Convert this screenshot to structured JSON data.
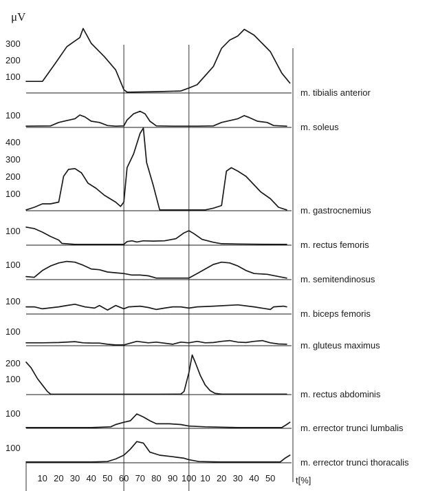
{
  "unit_label": "μV",
  "x_axis_label": "t[%]",
  "chart_data": {
    "type": "line",
    "title": "",
    "ylabel": "μV",
    "xlabel": "t[%]",
    "x_tick_labels": [
      "10",
      "20",
      "30",
      "40",
      "50",
      "60",
      "70",
      "80",
      "90",
      "100",
      "10",
      "20",
      "30",
      "40",
      "50"
    ],
    "x_segments": [
      {
        "start": 0,
        "end": 60
      },
      {
        "start": 60,
        "end": 100
      },
      {
        "start": 100,
        "end": 160
      }
    ],
    "x_range": [
      0,
      163
    ],
    "grid": false,
    "panels": [
      {
        "name": "m. tibialis anterior",
        "y_ticks": [
          "100",
          "200",
          "300"
        ],
        "tick_values": [
          100,
          200,
          300
        ],
        "points": [
          [
            0,
            70
          ],
          [
            10,
            70
          ],
          [
            18,
            180
          ],
          [
            25,
            280
          ],
          [
            30,
            315
          ],
          [
            33,
            335
          ],
          [
            35,
            390
          ],
          [
            40,
            300
          ],
          [
            48,
            220
          ],
          [
            55,
            140
          ],
          [
            60,
            20
          ],
          [
            62,
            5
          ],
          [
            80,
            8
          ],
          [
            95,
            12
          ],
          [
            100,
            30
          ],
          [
            105,
            50
          ],
          [
            115,
            160
          ],
          [
            120,
            270
          ],
          [
            125,
            320
          ],
          [
            130,
            345
          ],
          [
            134,
            385
          ],
          [
            140,
            350
          ],
          [
            150,
            250
          ],
          [
            157,
            120
          ],
          [
            162,
            60
          ]
        ]
      },
      {
        "name": "m. soleus",
        "y_ticks": [
          "100"
        ],
        "tick_values": [
          100
        ],
        "points": [
          [
            0,
            10
          ],
          [
            15,
            12
          ],
          [
            20,
            40
          ],
          [
            25,
            55
          ],
          [
            30,
            70
          ],
          [
            33,
            100
          ],
          [
            36,
            85
          ],
          [
            40,
            50
          ],
          [
            45,
            40
          ],
          [
            50,
            15
          ],
          [
            55,
            10
          ],
          [
            60,
            12
          ],
          [
            62,
            60
          ],
          [
            66,
            110
          ],
          [
            70,
            130
          ],
          [
            73,
            110
          ],
          [
            76,
            50
          ],
          [
            80,
            12
          ],
          [
            90,
            10
          ],
          [
            105,
            10
          ],
          [
            115,
            12
          ],
          [
            120,
            40
          ],
          [
            130,
            70
          ],
          [
            134,
            95
          ],
          [
            137,
            80
          ],
          [
            142,
            50
          ],
          [
            148,
            40
          ],
          [
            152,
            15
          ],
          [
            160,
            10
          ]
        ]
      },
      {
        "name": "m. gastrocnemius",
        "y_ticks": [
          "100",
          "200",
          "300",
          "400"
        ],
        "tick_values": [
          100,
          200,
          300,
          400
        ],
        "points": [
          [
            0,
            5
          ],
          [
            5,
            20
          ],
          [
            10,
            40
          ],
          [
            15,
            40
          ],
          [
            20,
            50
          ],
          [
            23,
            200
          ],
          [
            26,
            240
          ],
          [
            30,
            245
          ],
          [
            34,
            220
          ],
          [
            38,
            160
          ],
          [
            43,
            130
          ],
          [
            48,
            90
          ],
          [
            55,
            50
          ],
          [
            58,
            25
          ],
          [
            60,
            50
          ],
          [
            62,
            250
          ],
          [
            66,
            330
          ],
          [
            70,
            450
          ],
          [
            72,
            480
          ],
          [
            74,
            280
          ],
          [
            78,
            150
          ],
          [
            82,
            5
          ],
          [
            100,
            5
          ],
          [
            110,
            5
          ],
          [
            115,
            15
          ],
          [
            120,
            30
          ],
          [
            123,
            230
          ],
          [
            126,
            250
          ],
          [
            130,
            230
          ],
          [
            135,
            200
          ],
          [
            139,
            160
          ],
          [
            144,
            110
          ],
          [
            150,
            70
          ],
          [
            155,
            20
          ],
          [
            160,
            5
          ]
        ]
      },
      {
        "name": "m. rectus femoris",
        "y_ticks": [
          "100"
        ],
        "tick_values": [
          100
        ],
        "points": [
          [
            0,
            125
          ],
          [
            5,
            115
          ],
          [
            10,
            90
          ],
          [
            15,
            60
          ],
          [
            20,
            35
          ],
          [
            22,
            12
          ],
          [
            30,
            5
          ],
          [
            40,
            5
          ],
          [
            50,
            5
          ],
          [
            60,
            5
          ],
          [
            62,
            25
          ],
          [
            65,
            30
          ],
          [
            68,
            22
          ],
          [
            72,
            30
          ],
          [
            78,
            28
          ],
          [
            85,
            30
          ],
          [
            92,
            45
          ],
          [
            97,
            85
          ],
          [
            100,
            100
          ],
          [
            103,
            80
          ],
          [
            108,
            40
          ],
          [
            115,
            20
          ],
          [
            120,
            10
          ],
          [
            130,
            8
          ],
          [
            145,
            6
          ],
          [
            160,
            5
          ]
        ]
      },
      {
        "name": "m. semitendinosus",
        "y_ticks": [
          "100"
        ],
        "tick_values": [
          100
        ],
        "points": [
          [
            0,
            20
          ],
          [
            5,
            15
          ],
          [
            10,
            60
          ],
          [
            15,
            90
          ],
          [
            20,
            110
          ],
          [
            25,
            120
          ],
          [
            30,
            115
          ],
          [
            35,
            95
          ],
          [
            40,
            70
          ],
          [
            45,
            65
          ],
          [
            50,
            50
          ],
          [
            55,
            45
          ],
          [
            60,
            40
          ],
          [
            65,
            30
          ],
          [
            70,
            30
          ],
          [
            75,
            25
          ],
          [
            80,
            10
          ],
          [
            90,
            10
          ],
          [
            100,
            10
          ],
          [
            105,
            40
          ],
          [
            110,
            70
          ],
          [
            115,
            100
          ],
          [
            120,
            115
          ],
          [
            125,
            110
          ],
          [
            130,
            90
          ],
          [
            135,
            60
          ],
          [
            140,
            40
          ],
          [
            148,
            35
          ],
          [
            155,
            20
          ],
          [
            160,
            10
          ]
        ]
      },
      {
        "name": "m. biceps femoris",
        "y_ticks": [
          "100"
        ],
        "tick_values": [
          100
        ],
        "points": [
          [
            0,
            55
          ],
          [
            5,
            55
          ],
          [
            10,
            40
          ],
          [
            20,
            55
          ],
          [
            25,
            65
          ],
          [
            30,
            75
          ],
          [
            36,
            55
          ],
          [
            42,
            45
          ],
          [
            45,
            65
          ],
          [
            50,
            30
          ],
          [
            55,
            65
          ],
          [
            60,
            40
          ],
          [
            63,
            55
          ],
          [
            70,
            60
          ],
          [
            75,
            50
          ],
          [
            80,
            35
          ],
          [
            85,
            45
          ],
          [
            90,
            55
          ],
          [
            95,
            55
          ],
          [
            100,
            45
          ],
          [
            105,
            55
          ],
          [
            115,
            60
          ],
          [
            130,
            70
          ],
          [
            140,
            55
          ],
          [
            150,
            35
          ],
          [
            152,
            55
          ],
          [
            158,
            60
          ],
          [
            160,
            55
          ]
        ]
      },
      {
        "name": "m. gluteus maximus",
        "y_ticks": [
          "100"
        ],
        "tick_values": [
          100
        ],
        "points": [
          [
            0,
            20
          ],
          [
            10,
            20
          ],
          [
            20,
            22
          ],
          [
            30,
            28
          ],
          [
            35,
            20
          ],
          [
            40,
            18
          ],
          [
            45,
            18
          ],
          [
            50,
            10
          ],
          [
            55,
            5
          ],
          [
            60,
            5
          ],
          [
            63,
            15
          ],
          [
            68,
            30
          ],
          [
            75,
            20
          ],
          [
            80,
            25
          ],
          [
            90,
            10
          ],
          [
            95,
            25
          ],
          [
            100,
            20
          ],
          [
            105,
            30
          ],
          [
            110,
            20
          ],
          [
            115,
            22
          ],
          [
            120,
            30
          ],
          [
            125,
            35
          ],
          [
            130,
            25
          ],
          [
            135,
            22
          ],
          [
            140,
            30
          ],
          [
            145,
            35
          ],
          [
            150,
            20
          ],
          [
            155,
            12
          ],
          [
            160,
            10
          ]
        ]
      },
      {
        "name": "m. rectus abdominis",
        "y_ticks": [
          "100",
          "200"
        ],
        "tick_values": [
          100,
          200
        ],
        "points": [
          [
            0,
            205
          ],
          [
            3,
            170
          ],
          [
            7,
            100
          ],
          [
            10,
            60
          ],
          [
            13,
            20
          ],
          [
            15,
            3
          ],
          [
            20,
            2
          ],
          [
            40,
            2
          ],
          [
            60,
            2
          ],
          [
            80,
            2
          ],
          [
            95,
            3
          ],
          [
            97,
            20
          ],
          [
            100,
            140
          ],
          [
            102,
            250
          ],
          [
            104,
            200
          ],
          [
            107,
            120
          ],
          [
            110,
            60
          ],
          [
            113,
            25
          ],
          [
            116,
            8
          ],
          [
            120,
            3
          ],
          [
            140,
            3
          ],
          [
            160,
            3
          ]
        ]
      },
      {
        "name": "m. errector trunci lumbalis",
        "y_ticks": [
          "100"
        ],
        "tick_values": [
          100
        ],
        "points": [
          [
            0,
            5
          ],
          [
            20,
            5
          ],
          [
            40,
            5
          ],
          [
            52,
            10
          ],
          [
            55,
            25
          ],
          [
            60,
            40
          ],
          [
            64,
            50
          ],
          [
            68,
            95
          ],
          [
            72,
            75
          ],
          [
            76,
            50
          ],
          [
            80,
            30
          ],
          [
            88,
            30
          ],
          [
            95,
            25
          ],
          [
            100,
            15
          ],
          [
            110,
            10
          ],
          [
            130,
            5
          ],
          [
            150,
            5
          ],
          [
            157,
            5
          ],
          [
            160,
            25
          ],
          [
            162,
            40
          ]
        ]
      },
      {
        "name": "m. errector trunci thoracalis",
        "y_ticks": [
          "100"
        ],
        "tick_values": [
          100
        ],
        "points": [
          [
            0,
            5
          ],
          [
            20,
            5
          ],
          [
            40,
            5
          ],
          [
            50,
            8
          ],
          [
            55,
            25
          ],
          [
            60,
            50
          ],
          [
            64,
            90
          ],
          [
            68,
            140
          ],
          [
            72,
            130
          ],
          [
            76,
            70
          ],
          [
            82,
            50
          ],
          [
            90,
            40
          ],
          [
            97,
            30
          ],
          [
            100,
            20
          ],
          [
            106,
            8
          ],
          [
            120,
            5
          ],
          [
            140,
            5
          ],
          [
            156,
            5
          ],
          [
            159,
            30
          ],
          [
            162,
            50
          ]
        ]
      }
    ]
  }
}
